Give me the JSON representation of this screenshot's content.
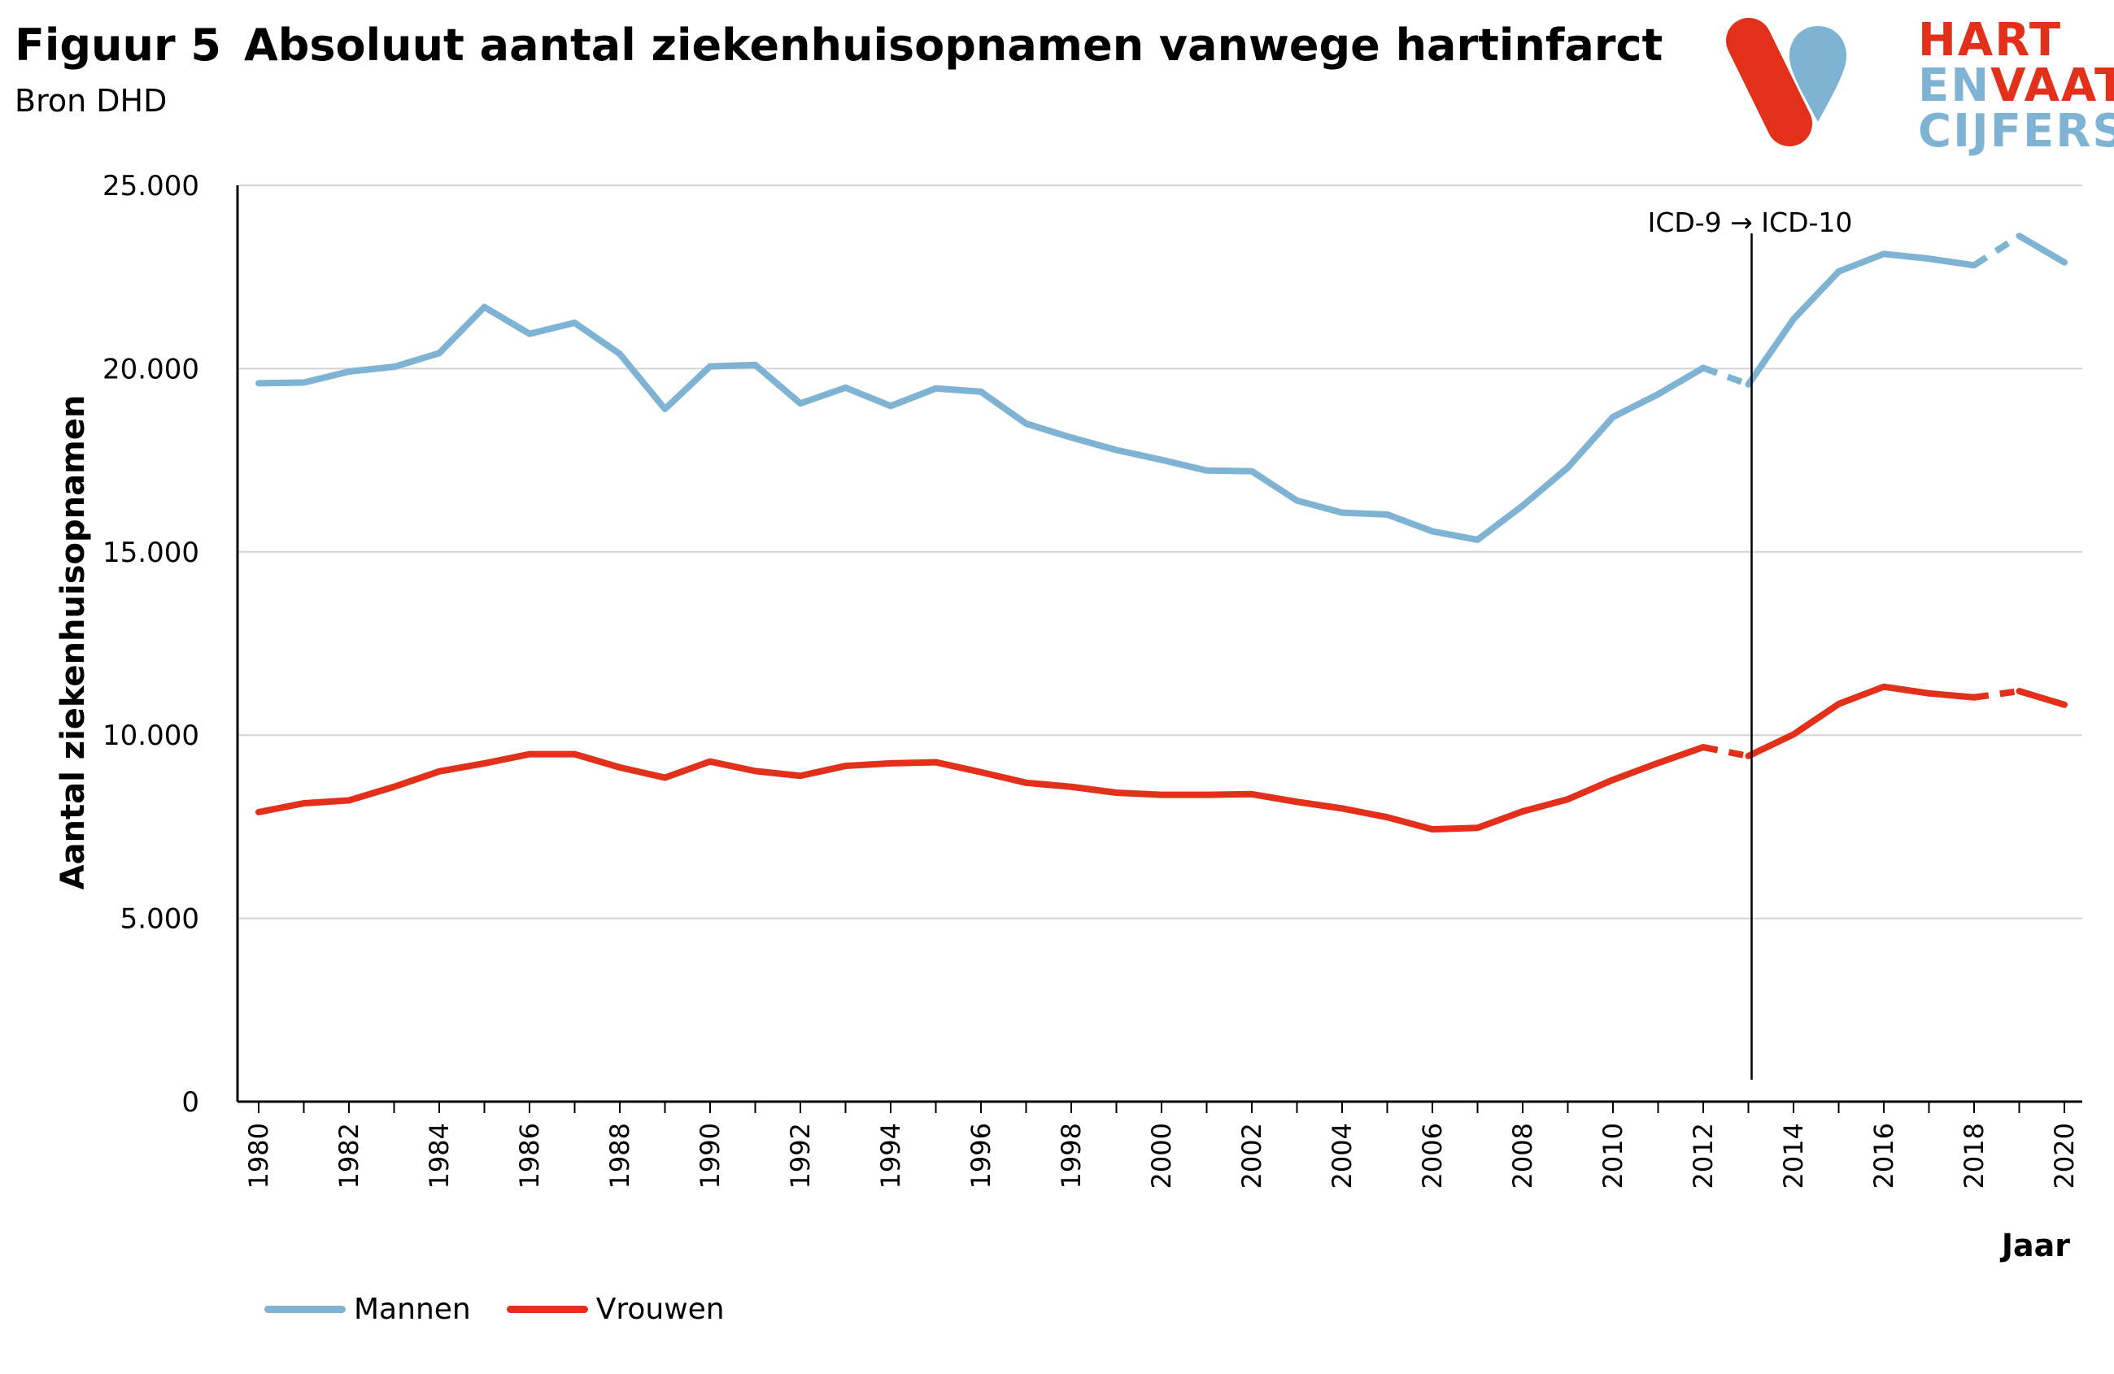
{
  "figure_label": "Figuur 5",
  "title": "Absoluut aantal ziekenhuisopnamen vanwege hartinfarct",
  "subtitle": "Bron DHD",
  "logo": {
    "line1": [
      "HART"
    ],
    "line2": [
      "EN",
      "VAAT"
    ],
    "line3": [
      "CIJFERS"
    ],
    "colors": {
      "red": "#E3301B",
      "blue": "#7FB3D3"
    }
  },
  "chart_data": {
    "type": "line",
    "xlabel": "Jaar",
    "ylabel": "Aantal ziekenhuisopnamen",
    "ylim": [
      0,
      25000
    ],
    "yticks": [
      0,
      5000,
      10000,
      15000,
      20000,
      25000
    ],
    "ytick_labels": [
      "0",
      "5.000",
      "10.000",
      "15.000",
      "20.000",
      "25.000"
    ],
    "xlim": [
      1980,
      2020
    ],
    "xtick_labels": [
      "1980",
      "1982",
      "1984",
      "1986",
      "1988",
      "1990",
      "1992",
      "1994",
      "1996",
      "1998",
      "2000",
      "2002",
      "2004",
      "2006",
      "2008",
      "2010",
      "2012",
      "2014",
      "2016",
      "2018",
      "2020"
    ],
    "grid": "horizontal",
    "legend": "bottom-left",
    "annotation": {
      "text": "ICD-9 → ICD-10",
      "x": 2013
    },
    "dashed_segments": [
      [
        2012,
        2013
      ],
      [
        2018,
        2019
      ]
    ],
    "x": [
      1980,
      1981,
      1982,
      1983,
      1984,
      1985,
      1986,
      1987,
      1988,
      1989,
      1990,
      1991,
      1992,
      1993,
      1994,
      1995,
      1996,
      1997,
      1998,
      1999,
      2000,
      2001,
      2002,
      2003,
      2004,
      2005,
      2006,
      2007,
      2008,
      2009,
      2010,
      2011,
      2012,
      2013,
      2014,
      2015,
      2016,
      2017,
      2018,
      2019,
      2020
    ],
    "series": [
      {
        "name": "Mannen",
        "color": "#7FB3D3",
        "values": [
          19600,
          19620,
          19920,
          20050,
          20420,
          21680,
          20950,
          21250,
          20400,
          18900,
          20060,
          20100,
          19050,
          19480,
          18980,
          19460,
          19370,
          18500,
          18120,
          17780,
          17510,
          17220,
          17200,
          16400,
          16070,
          16020,
          15560,
          15330,
          16260,
          17300,
          18680,
          19300,
          20020,
          19570,
          21350,
          22650,
          23130,
          23000,
          22820,
          23620,
          22900
        ]
      },
      {
        "name": "Vrouwen",
        "color": "#E3301B",
        "values": [
          7900,
          8140,
          8220,
          8590,
          9010,
          9230,
          9480,
          9480,
          9120,
          8840,
          9280,
          9020,
          8890,
          9160,
          9230,
          9260,
          8990,
          8700,
          8590,
          8430,
          8370,
          8370,
          8390,
          8180,
          8000,
          7760,
          7430,
          7470,
          7920,
          8250,
          8780,
          9240,
          9670,
          9430,
          10020,
          10850,
          11320,
          11140,
          11030,
          11200,
          10830
        ]
      }
    ]
  }
}
